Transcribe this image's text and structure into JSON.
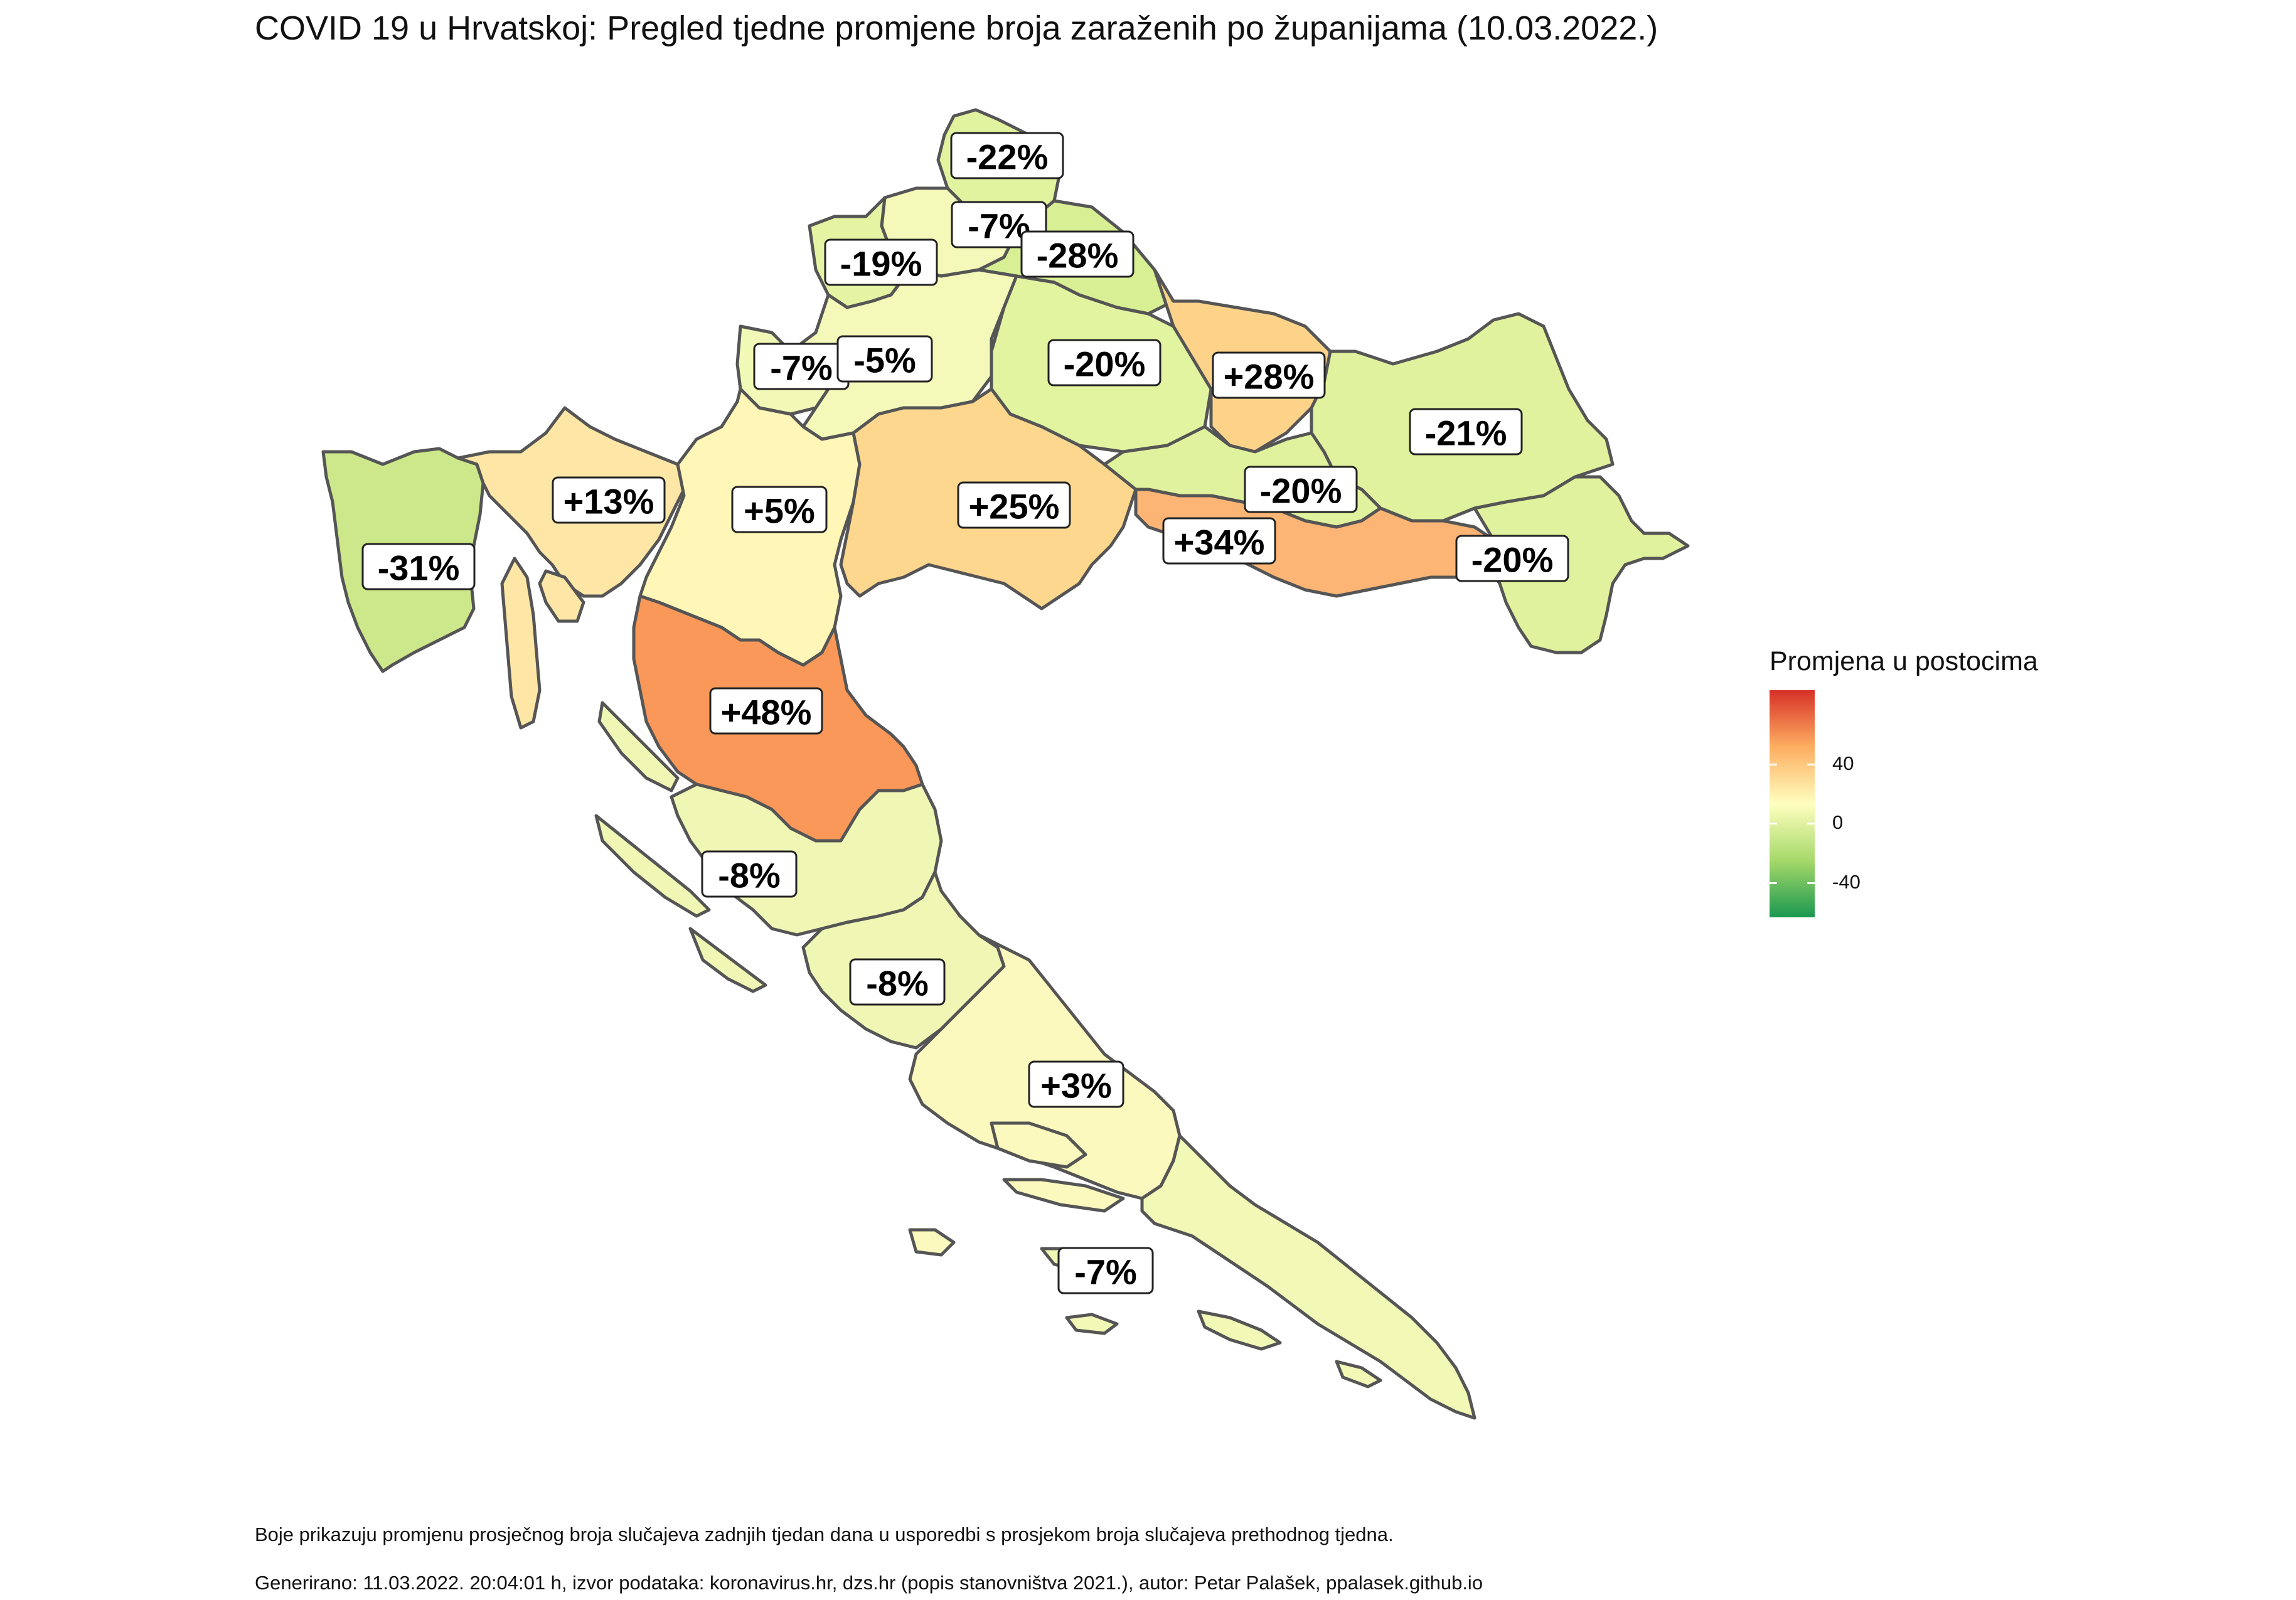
{
  "title": "COVID 19 u Hrvatskoj: Pregled tjedne promjene broja zaraženih po županijama (10.03.2022.)",
  "legend": {
    "title": "Promjena u postocima",
    "ticks": [
      "40",
      "0",
      "-40"
    ],
    "scale": {
      "min": -60,
      "max": 60,
      "low_color": "#1a9850",
      "mid_color": "#ffffbf",
      "high_color": "#d73027"
    }
  },
  "regions": [
    {
      "label": "-22%",
      "value": -22,
      "color": "#e2f3a0"
    },
    {
      "label": "-7%",
      "value": -7,
      "color": "#f4f9b9"
    },
    {
      "label": "-19%",
      "value": -19,
      "color": "#e4f4a3"
    },
    {
      "label": "-28%",
      "value": -28,
      "color": "#d8ef94"
    },
    {
      "label": "-7%",
      "value": -7,
      "color": "#f2f8b6"
    },
    {
      "label": "-5%",
      "value": -5,
      "color": "#f4f9b9"
    },
    {
      "label": "-20%",
      "value": -20,
      "color": "#e3f4a1"
    },
    {
      "label": "+28%",
      "value": 28,
      "color": "#fdd38a"
    },
    {
      "label": "-21%",
      "value": -21,
      "color": "#e0f29d"
    },
    {
      "label": "-31%",
      "value": -31,
      "color": "#cce88a"
    },
    {
      "label": "+13%",
      "value": 13,
      "color": "#fee6a6"
    },
    {
      "label": "+5%",
      "value": 5,
      "color": "#fff6b8"
    },
    {
      "label": "+25%",
      "value": 25,
      "color": "#fdd78e"
    },
    {
      "label": "-20%",
      "value": -20,
      "color": "#e0f29d"
    },
    {
      "label": "+34%",
      "value": 34,
      "color": "#fcb575"
    },
    {
      "label": "-20%",
      "value": -20,
      "color": "#e0f29d"
    },
    {
      "label": "+48%",
      "value": 48,
      "color": "#f99858"
    },
    {
      "label": "-8%",
      "value": -8,
      "color": "#f0f7b5"
    },
    {
      "label": "-8%",
      "value": -8,
      "color": "#f0f7b5"
    },
    {
      "label": "+3%",
      "value": 3,
      "color": "#fbf9bd"
    },
    {
      "label": "-7%",
      "value": -7,
      "color": "#f2f8b6"
    }
  ],
  "caption_line1": "Boje prikazuju promjenu prosječnog broja slučajeva zadnjih tjedan dana u usporedbi s prosjekom broja slučajeva prethodnog tjedna.",
  "caption_line2": "Generirano: 11.03.2022. 20:04:01 h, izvor podataka: koronavirus.hr, dzs.hr (popis stanovništva 2021.), autor: Petar Palašek, ppalasek.github.io"
}
